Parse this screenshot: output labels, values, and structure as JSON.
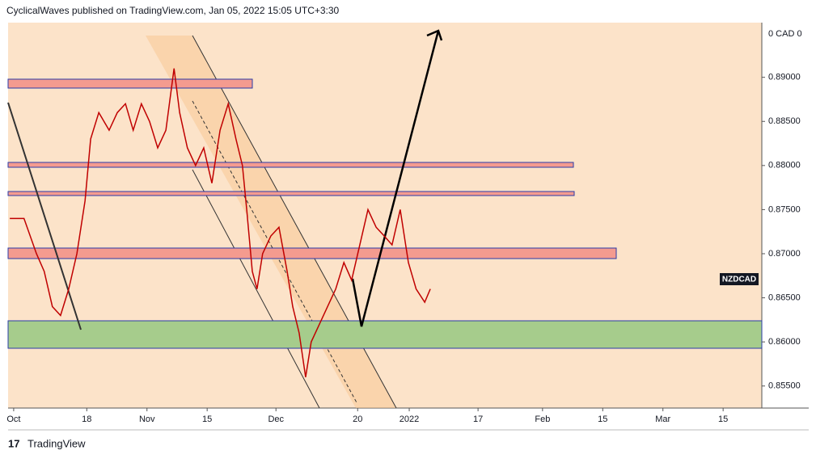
{
  "header": "CyclicalWaves published on TradingView.com, Jan 05, 2022 15:05 UTC+3:30",
  "footer": "TradingView",
  "chart_data": {
    "type": "line",
    "symbol": "NZDCAD",
    "currency_label": "0 CAD 0",
    "color": "#c00000",
    "x": [
      -0.9,
      2.4,
      5.3,
      7.1,
      9.0,
      10.9,
      12.8,
      14.7,
      16.6,
      17.9,
      19.8,
      22.2,
      24.1,
      26.0,
      27.8,
      29.7,
      31.6,
      33.5,
      35.4,
      37.3,
      38.6,
      40.4,
      42.3,
      44.2,
      46.1,
      48.0,
      49.9,
      51.7,
      53.2,
      54.2,
      55.5,
      56.6,
      57.9,
      59.8,
      61.7,
      63.6,
      64.9,
      66.4,
      67.9,
      69.2,
      71.1,
      73.0,
      74.9,
      76.8,
      78.6,
      80.5,
      82.4,
      84.3,
      86.2,
      88.0,
      89.9,
      91.8,
      93.6,
      95.6,
      96.9
    ],
    "values": [
      0.874,
      0.874,
      0.87,
      0.868,
      0.864,
      0.863,
      0.866,
      0.87,
      0.876,
      0.883,
      0.886,
      0.884,
      0.886,
      0.887,
      0.884,
      0.887,
      0.885,
      0.882,
      0.884,
      0.891,
      0.886,
      0.882,
      0.88,
      0.882,
      0.878,
      0.884,
      0.887,
      0.883,
      0.88,
      0.875,
      0.868,
      0.866,
      0.87,
      0.872,
      0.873,
      0.868,
      0.864,
      0.861,
      0.856,
      0.86,
      0.862,
      0.864,
      0.866,
      0.869,
      0.867,
      0.871,
      0.875,
      0.873,
      0.872,
      0.871,
      0.875,
      0.869,
      0.866,
      0.8645,
      0.866
    ],
    "xlim": [
      -1.3,
      174
    ],
    "xticks": [
      {
        "value": 0,
        "label": "Oct"
      },
      {
        "value": 17,
        "label": "18"
      },
      {
        "value": 31,
        "label": "Nov"
      },
      {
        "value": 45,
        "label": "15"
      },
      {
        "value": 61,
        "label": "Dec"
      },
      {
        "value": 80,
        "label": "20"
      },
      {
        "value": 92,
        "label": "2022"
      },
      {
        "value": 108,
        "label": "17"
      },
      {
        "value": 123,
        "label": "Feb"
      },
      {
        "value": 137,
        "label": "15"
      },
      {
        "value": 151,
        "label": "Mar"
      },
      {
        "value": 165,
        "label": "15"
      }
    ],
    "ylim": [
      0.8525,
      0.8962
    ],
    "yticks": [
      {
        "value": 0.89,
        "label": "0.89000"
      },
      {
        "value": 0.885,
        "label": "0.88500"
      },
      {
        "value": 0.88,
        "label": "0.88000"
      },
      {
        "value": 0.875,
        "label": "0.87500"
      },
      {
        "value": 0.87,
        "label": "0.87000"
      },
      {
        "value": 0.865,
        "label": "0.86500"
      },
      {
        "value": 0.86,
        "label": "0.86000"
      },
      {
        "value": 0.855,
        "label": "0.85500"
      }
    ]
  }
}
